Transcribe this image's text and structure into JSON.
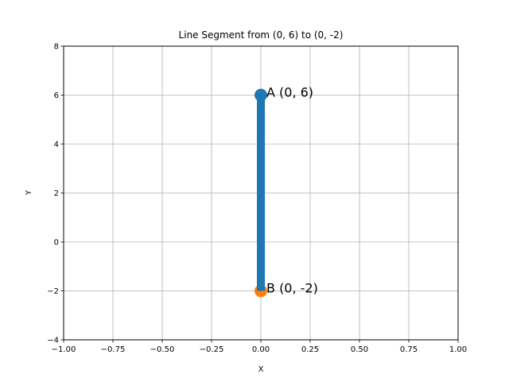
{
  "chart_data": {
    "type": "line",
    "title": "Line Segment from (0, 6) to (0, -2)",
    "xlabel": "X",
    "ylabel": "Y",
    "xlim": [
      -1.0,
      1.0
    ],
    "ylim": [
      -4,
      8
    ],
    "xticks": [
      "−1.00",
      "−0.75",
      "−0.50",
      "−0.25",
      "0.00",
      "0.25",
      "0.50",
      "0.75",
      "1.00"
    ],
    "xtick_values": [
      -1.0,
      -0.75,
      -0.5,
      -0.25,
      0.0,
      0.25,
      0.5,
      0.75,
      1.0
    ],
    "yticks": [
      "−4",
      "−2",
      "0",
      "2",
      "4",
      "6",
      "8"
    ],
    "ytick_values": [
      -4,
      -2,
      0,
      2,
      4,
      6,
      8
    ],
    "grid": true,
    "segment": {
      "x": [
        0,
        0
      ],
      "y": [
        6,
        -2
      ],
      "color": "#1f77b4"
    },
    "points": [
      {
        "label": "A (0, 6)",
        "x": 0,
        "y": 6,
        "color": "#1f77b4"
      },
      {
        "label": "B (0, -2)",
        "x": 0,
        "y": -2,
        "color": "#ff7f0e"
      }
    ]
  }
}
